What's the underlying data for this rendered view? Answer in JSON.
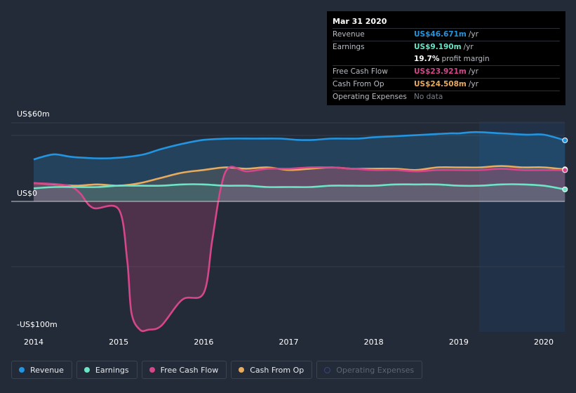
{
  "chart_data": {
    "type": "area",
    "units": "US$m",
    "y_axis": {
      "top_label": "US$60m",
      "zero_label": "US$0",
      "bottom_label": "-US$100m",
      "ylim": [
        -100,
        60
      ]
    },
    "x_axis": {
      "ticks": [
        "2014",
        "2015",
        "2016",
        "2017",
        "2018",
        "2019",
        "2020"
      ],
      "xlim": [
        2013.99,
        2020.25
      ]
    },
    "series": [
      {
        "name": "Revenue",
        "color": "#2394df",
        "x": [
          2014.0,
          2014.1,
          2014.25,
          2014.45,
          2014.7,
          2014.9,
          2015.1,
          2015.3,
          2015.5,
          2015.75,
          2016.0,
          2016.3,
          2016.6,
          2016.9,
          2017.1,
          2017.3,
          2017.5,
          2017.8,
          2018.0,
          2018.3,
          2018.6,
          2018.9,
          2019.0,
          2019.2,
          2019.5,
          2019.8,
          2020.0,
          2020.25
        ],
        "values": [
          32,
          34,
          36,
          34,
          33,
          33,
          34,
          36,
          40,
          44,
          47,
          48,
          48,
          48,
          47,
          47,
          48,
          48,
          49,
          50,
          51,
          52,
          52,
          53,
          52,
          51,
          51,
          46.671
        ]
      },
      {
        "name": "Earnings",
        "color": "#6ce4c6",
        "x": [
          2014.0,
          2014.25,
          2014.5,
          2014.75,
          2015.0,
          2015.25,
          2015.5,
          2015.75,
          2016.0,
          2016.25,
          2016.5,
          2016.75,
          2017.0,
          2017.25,
          2017.5,
          2017.75,
          2018.0,
          2018.25,
          2018.5,
          2018.75,
          2019.0,
          2019.25,
          2019.5,
          2019.75,
          2020.0,
          2020.25
        ],
        "values": [
          10,
          11,
          11,
          11,
          12,
          12,
          12,
          13,
          13,
          12,
          12,
          11,
          11,
          11,
          12,
          12,
          12,
          13,
          13,
          13,
          12,
          12,
          13,
          13,
          12,
          9.19
        ]
      },
      {
        "name": "Free Cash Flow",
        "color": "#d5478a",
        "x": [
          2014.0,
          2014.3,
          2014.45,
          2014.55,
          2014.7,
          2015.0,
          2015.1,
          2015.15,
          2015.25,
          2015.35,
          2015.5,
          2015.75,
          2016.0,
          2016.1,
          2016.2,
          2016.3,
          2016.5,
          2016.75,
          2017.0,
          2017.25,
          2017.5,
          2017.75,
          2018.0,
          2018.25,
          2018.5,
          2018.75,
          2019.0,
          2019.25,
          2019.5,
          2019.75,
          2020.0,
          2020.25
        ],
        "values": [
          14,
          13,
          11,
          6,
          -5,
          -6,
          -45,
          -85,
          -98,
          -98,
          -95,
          -75,
          -70,
          -30,
          10,
          26,
          23,
          25,
          25,
          26,
          26,
          25,
          24,
          24,
          23,
          24,
          24,
          24,
          25,
          24,
          24,
          23.921
        ]
      },
      {
        "name": "Cash From Op",
        "color": "#e8ab5e",
        "x": [
          2014.0,
          2014.25,
          2014.5,
          2014.75,
          2015.0,
          2015.25,
          2015.5,
          2015.75,
          2016.0,
          2016.25,
          2016.5,
          2016.75,
          2017.0,
          2017.25,
          2017.5,
          2017.75,
          2018.0,
          2018.25,
          2018.5,
          2018.75,
          2019.0,
          2019.25,
          2019.5,
          2019.75,
          2020.0,
          2020.25
        ],
        "values": [
          14,
          13,
          12,
          13,
          12,
          14,
          18,
          22,
          24,
          26,
          25,
          26,
          24,
          25,
          26,
          25,
          25,
          25,
          24,
          26,
          26,
          26,
          27,
          26,
          26,
          24.508
        ]
      },
      {
        "name": "Operating Expenses",
        "color": "#3a4680",
        "values": []
      }
    ],
    "highlight_region": {
      "x_start": 2019.24,
      "x_end": 2020.25
    },
    "tooltip": {
      "date": "Mar 31 2020",
      "rows": [
        {
          "key": "Revenue",
          "value": "US$46.671m",
          "unit": "/yr",
          "color": "#2394df"
        },
        {
          "key": "Earnings",
          "value": "US$9.190m",
          "unit": "/yr",
          "color": "#6ce4c6"
        },
        {
          "key": "",
          "value": "19.7%",
          "unit": "profit margin",
          "color": "#ffffff"
        },
        {
          "key": "Free Cash Flow",
          "value": "US$23.921m",
          "unit": "/yr",
          "color": "#d5478a"
        },
        {
          "key": "Cash From Op",
          "value": "US$24.508m",
          "unit": "/yr",
          "color": "#e8ab5e"
        },
        {
          "key": "Operating Expenses",
          "value": "No data",
          "unit": "",
          "color": "#7a808a"
        }
      ]
    },
    "legend": [
      {
        "label": "Revenue",
        "color": "#2394df",
        "enabled": true
      },
      {
        "label": "Earnings",
        "color": "#6ce4c6",
        "enabled": true
      },
      {
        "label": "Free Cash Flow",
        "color": "#d5478a",
        "enabled": true
      },
      {
        "label": "Cash From Op",
        "color": "#e8ab5e",
        "enabled": true
      },
      {
        "label": "Operating Expenses",
        "color": "#3a4680",
        "enabled": false
      }
    ]
  }
}
